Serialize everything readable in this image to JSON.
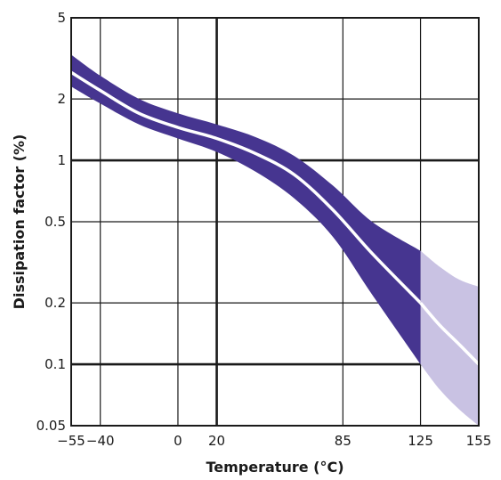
{
  "chart_data": {
    "type": "area",
    "title": "",
    "xlabel": "Temperature (°C)",
    "ylabel": "Dissipation factor (%)",
    "x_scale": "linear",
    "y_scale": "log",
    "xlim": [
      -55,
      155
    ],
    "ylim": [
      0.05,
      5
    ],
    "x_ticks": [
      {
        "value": -55,
        "label": "−55"
      },
      {
        "value": -40,
        "label": "−40"
      },
      {
        "value": 0,
        "label": "0"
      },
      {
        "value": 20,
        "label": "20"
      },
      {
        "value": 85,
        "label": "85"
      },
      {
        "value": 125,
        "label": "125"
      },
      {
        "value": 155,
        "label": "155"
      }
    ],
    "y_ticks": [
      {
        "value": 0.05,
        "label": "0.05"
      },
      {
        "value": 0.1,
        "label": "0.1"
      },
      {
        "value": 0.2,
        "label": "0.2"
      },
      {
        "value": 0.5,
        "label": "0.5"
      },
      {
        "value": 1,
        "label": "1"
      },
      {
        "value": 2,
        "label": "2"
      },
      {
        "value": 5,
        "label": "5"
      }
    ],
    "x_gridlines": [
      -40,
      0,
      20,
      85,
      125
    ],
    "y_gridlines": [
      0.1,
      0.2,
      0.5,
      1,
      2
    ],
    "bold_gridlines": {
      "x": [
        20
      ],
      "y": [
        0.1,
        1
      ]
    },
    "grid": true,
    "series": [
      {
        "color": "#463590",
        "x": [
          -55,
          -40,
          -20,
          0,
          20,
          40,
          60,
          80,
          100,
          125
        ],
        "upper": [
          3.3,
          2.6,
          2.0,
          1.7,
          1.5,
          1.3,
          1.05,
          0.75,
          0.5,
          0.36
        ],
        "lower": [
          2.3,
          1.9,
          1.5,
          1.28,
          1.1,
          0.88,
          0.65,
          0.42,
          0.22,
          0.1
        ],
        "center": [
          2.7,
          2.2,
          1.7,
          1.45,
          1.28,
          1.08,
          0.85,
          0.57,
          0.35,
          0.2
        ]
      },
      {
        "color": "#c9c2e3",
        "x": [
          125,
          135,
          145,
          155
        ],
        "upper": [
          0.36,
          0.3,
          0.26,
          0.24
        ],
        "lower": [
          0.1,
          0.075,
          0.06,
          0.05
        ],
        "center": [
          0.2,
          0.155,
          0.125,
          0.1
        ]
      }
    ]
  }
}
